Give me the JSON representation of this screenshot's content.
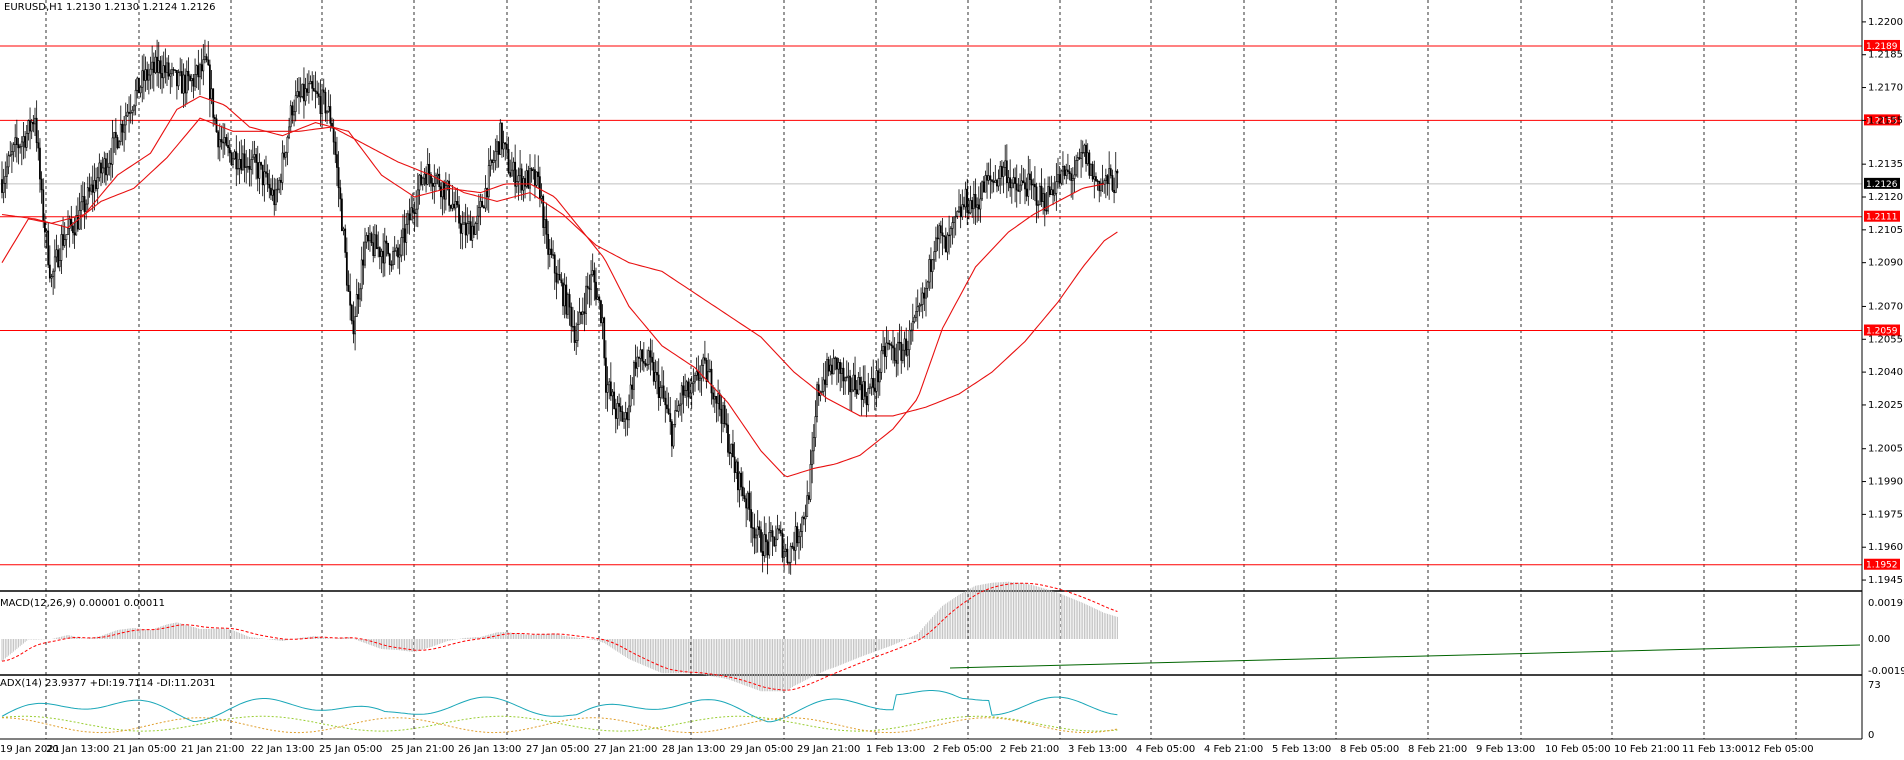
{
  "colors": {
    "level_line": "#ff0000",
    "ma_line": "#e81010",
    "candle": "#000000",
    "grid": "#000000",
    "macd_signal": "#ff0000",
    "macd_hist": "#b8b8b8",
    "adx": "#1aa7b8",
    "di_plus": "#9acd32",
    "di_minus": "#e0a030",
    "trend": "#006400",
    "current": "#000000"
  },
  "chart_data": {
    "type": "candlestick",
    "price_header": {
      "symbol": "EURUSD,H1",
      "ohlc": "1.2130 1.2130 1.2124 1.2126"
    },
    "y_range": [
      1.194,
      1.221
    ],
    "y_ticks": [
      "1.2200",
      "1.2185",
      "1.2170",
      "1.2155",
      "1.2135",
      "1.2120",
      "1.2105",
      "1.2090",
      "1.2070",
      "1.2055",
      "1.2040",
      "1.2025",
      "1.2005",
      "1.1990",
      "1.1975",
      "1.1960",
      "1.1945"
    ],
    "levels": [
      "1.2189",
      "1.2155",
      "1.2111",
      "1.2059",
      "1.1952"
    ],
    "current_price": "1.2126",
    "x_labels": [
      "19 Jan 2021",
      "20 Jan 13:00",
      "21 Jan 05:00",
      "21 Jan 21:00",
      "22 Jan 13:00",
      "25 Jan 05:00",
      "25 Jan 21:00",
      "26 Jan 13:00",
      "27 Jan 05:00",
      "27 Jan 21:00",
      "28 Jan 13:00",
      "29 Jan 05:00",
      "29 Jan 21:00",
      "1 Feb 13:00",
      "2 Feb 05:00",
      "2 Feb 21:00",
      "3 Feb 13:00",
      "4 Feb 05:00",
      "4 Feb 21:00",
      "5 Feb 13:00",
      "8 Feb 05:00",
      "8 Feb 21:00",
      "9 Feb 13:00",
      "10 Feb 05:00",
      "10 Feb 21:00",
      "11 Feb 13:00",
      "12 Feb 05:00"
    ],
    "price_path": [
      [
        0,
        1.2128
      ],
      [
        8,
        1.2142
      ],
      [
        16,
        1.215
      ],
      [
        20,
        1.2158
      ],
      [
        24,
        1.2118
      ],
      [
        30,
        1.2082
      ],
      [
        36,
        1.21
      ],
      [
        46,
        1.211
      ],
      [
        56,
        1.2126
      ],
      [
        66,
        1.214
      ],
      [
        76,
        1.216
      ],
      [
        86,
        1.2174
      ],
      [
        96,
        1.218
      ],
      [
        106,
        1.2172
      ],
      [
        114,
        1.2172
      ],
      [
        124,
        1.218
      ],
      [
        130,
        1.215
      ],
      [
        136,
        1.214
      ],
      [
        146,
        1.2138
      ],
      [
        156,
        1.2132
      ],
      [
        166,
        1.2118
      ],
      [
        176,
        1.2162
      ],
      [
        186,
        1.2168
      ],
      [
        196,
        1.2162
      ],
      [
        200,
        1.2154
      ],
      [
        206,
        1.211
      ],
      [
        212,
        1.2058
      ],
      [
        220,
        1.2098
      ],
      [
        230,
        1.2096
      ],
      [
        240,
        1.2092
      ],
      [
        250,
        1.2118
      ],
      [
        256,
        1.2132
      ],
      [
        262,
        1.213
      ],
      [
        270,
        1.2122
      ],
      [
        280,
        1.2104
      ],
      [
        288,
        1.2108
      ],
      [
        294,
        1.2126
      ],
      [
        302,
        1.2148
      ],
      [
        308,
        1.2132
      ],
      [
        316,
        1.2128
      ],
      [
        322,
        1.2128
      ],
      [
        326,
        1.2124
      ],
      [
        330,
        1.2098
      ],
      [
        338,
        1.208
      ],
      [
        344,
        1.2068
      ],
      [
        348,
        1.2056
      ],
      [
        354,
        1.2076
      ],
      [
        358,
        1.2084
      ],
      [
        364,
        1.2064
      ],
      [
        366,
        1.2036
      ],
      [
        372,
        1.2022
      ],
      [
        378,
        1.2018
      ],
      [
        384,
        1.2046
      ],
      [
        392,
        1.2044
      ],
      [
        400,
        1.203
      ],
      [
        406,
        1.2012
      ],
      [
        412,
        1.203
      ],
      [
        418,
        1.203
      ],
      [
        424,
        1.2042
      ],
      [
        430,
        1.2036
      ],
      [
        436,
        1.2022
      ],
      [
        444,
        1.1996
      ],
      [
        450,
        1.1984
      ],
      [
        458,
        1.1964
      ],
      [
        464,
        1.196
      ],
      [
        470,
        1.1966
      ],
      [
        476,
        1.1956
      ],
      [
        482,
        1.1966
      ],
      [
        488,
        1.198
      ],
      [
        492,
        1.2006
      ],
      [
        494,
        1.203
      ],
      [
        500,
        1.204
      ],
      [
        506,
        1.2044
      ],
      [
        512,
        1.2032
      ],
      [
        518,
        1.2036
      ],
      [
        524,
        1.203
      ],
      [
        530,
        1.2036
      ],
      [
        536,
        1.2052
      ],
      [
        542,
        1.2048
      ],
      [
        548,
        1.2052
      ],
      [
        554,
        1.2062
      ],
      [
        560,
        1.2076
      ],
      [
        566,
        1.2106
      ],
      [
        572,
        1.2096
      ],
      [
        578,
        1.2108
      ],
      [
        584,
        1.2118
      ],
      [
        590,
        1.2116
      ],
      [
        596,
        1.2126
      ],
      [
        602,
        1.2128
      ],
      [
        608,
        1.2134
      ],
      [
        614,
        1.2122
      ],
      [
        620,
        1.2126
      ],
      [
        626,
        1.2122
      ],
      [
        632,
        1.2118
      ],
      [
        638,
        1.2126
      ],
      [
        644,
        1.213
      ],
      [
        650,
        1.213
      ],
      [
        656,
        1.214
      ],
      [
        662,
        1.2128
      ],
      [
        668,
        1.2126
      ],
      [
        672,
        1.2128
      ],
      [
        676,
        1.2126
      ]
    ],
    "ma_fast_path": [
      [
        0,
        1.209
      ],
      [
        16,
        1.211
      ],
      [
        30,
        1.2108
      ],
      [
        50,
        1.2112
      ],
      [
        70,
        1.213
      ],
      [
        90,
        1.214
      ],
      [
        106,
        1.216
      ],
      [
        120,
        1.2166
      ],
      [
        135,
        1.2162
      ],
      [
        150,
        1.2152
      ],
      [
        170,
        1.2148
      ],
      [
        190,
        1.2154
      ],
      [
        210,
        1.215
      ],
      [
        230,
        1.213
      ],
      [
        250,
        1.212
      ],
      [
        270,
        1.2124
      ],
      [
        290,
        1.2122
      ],
      [
        305,
        1.2126
      ],
      [
        320,
        1.2126
      ],
      [
        335,
        1.212
      ],
      [
        350,
        1.2106
      ],
      [
        365,
        1.2092
      ],
      [
        380,
        1.207
      ],
      [
        400,
        1.2052
      ],
      [
        420,
        1.2042
      ],
      [
        440,
        1.2026
      ],
      [
        460,
        1.2004
      ],
      [
        475,
        1.1992
      ],
      [
        492,
        1.1996
      ],
      [
        505,
        1.1998
      ],
      [
        520,
        1.2002
      ],
      [
        540,
        1.2014
      ],
      [
        555,
        1.2028
      ],
      [
        570,
        1.206
      ],
      [
        590,
        1.2088
      ],
      [
        610,
        1.2104
      ],
      [
        625,
        1.2112
      ],
      [
        640,
        1.2118
      ],
      [
        655,
        1.2124
      ],
      [
        668,
        1.2126
      ]
    ],
    "ma_slow_path": [
      [
        0,
        1.2112
      ],
      [
        20,
        1.211
      ],
      [
        40,
        1.2106
      ],
      [
        60,
        1.2118
      ],
      [
        80,
        1.2124
      ],
      [
        100,
        1.2138
      ],
      [
        120,
        1.2156
      ],
      [
        140,
        1.215
      ],
      [
        160,
        1.215
      ],
      [
        180,
        1.215
      ],
      [
        200,
        1.2152
      ],
      [
        220,
        1.2144
      ],
      [
        240,
        1.2136
      ],
      [
        260,
        1.213
      ],
      [
        280,
        1.2122
      ],
      [
        300,
        1.2118
      ],
      [
        320,
        1.2122
      ],
      [
        340,
        1.2112
      ],
      [
        360,
        1.2098
      ],
      [
        380,
        1.209
      ],
      [
        400,
        1.2086
      ],
      [
        420,
        1.2076
      ],
      [
        440,
        1.2066
      ],
      [
        460,
        1.2056
      ],
      [
        480,
        1.204
      ],
      [
        500,
        1.2028
      ],
      [
        520,
        1.202
      ],
      [
        540,
        1.202
      ],
      [
        560,
        1.2024
      ],
      [
        580,
        1.203
      ],
      [
        600,
        1.204
      ],
      [
        620,
        1.2054
      ],
      [
        640,
        1.2072
      ],
      [
        655,
        1.2088
      ],
      [
        668,
        1.21
      ],
      [
        676,
        1.2104
      ]
    ],
    "macd": {
      "label": "MACD(12,26,9) 0.00001 0.00011",
      "ticks": [
        "0.00197",
        "0.00",
        "-0.00196"
      ],
      "range": [
        -0.00196,
        0.00197
      ]
    },
    "adx": {
      "label": "ADX(14) 23.9377 +DI:19.7114 -DI:11.2031",
      "ticks": [
        "73",
        "0"
      ],
      "range": [
        0,
        73
      ]
    }
  }
}
